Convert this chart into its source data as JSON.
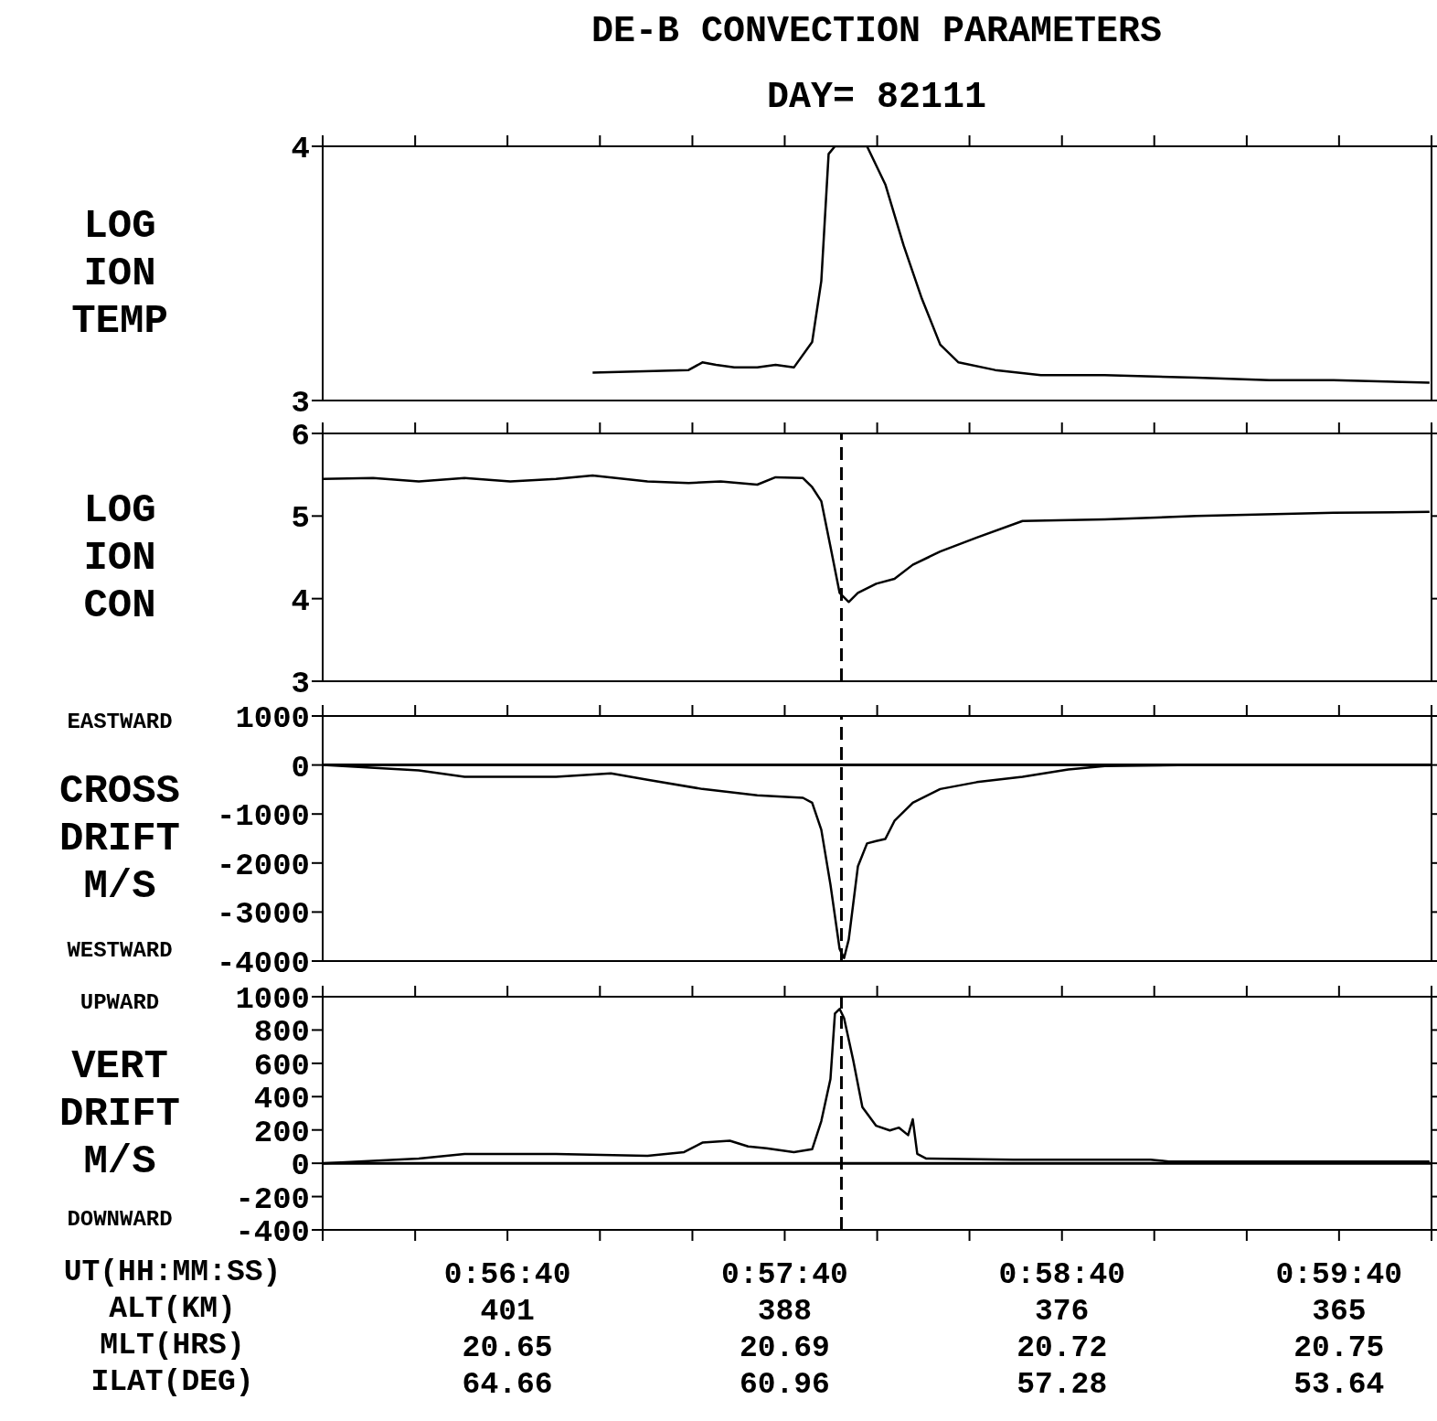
{
  "chart_data": [
    {
      "type": "line",
      "title": "DE-B CONVECTION PARAMETERS",
      "subtitle": "DAY= 82111",
      "ylabel": "LOG\nION\nTEMP",
      "tick_labels": "y",
      "xlim": [
        0.93333,
        1.0
      ],
      "xticks": [
        {
          "value": 0.93333,
          "label": null
        },
        {
          "value": 0.93889,
          "label": null
        },
        {
          "value": 0.94444,
          "label": null
        },
        {
          "value": 0.95,
          "label": null
        },
        {
          "value": 0.95556,
          "label": null
        },
        {
          "value": 0.96111,
          "label": null
        },
        {
          "value": 0.96667,
          "label": null
        },
        {
          "value": 0.97222,
          "label": null
        },
        {
          "value": 0.97778,
          "label": null
        },
        {
          "value": 0.98333,
          "label": null
        },
        {
          "value": 0.98889,
          "label": null
        },
        {
          "value": 0.99444,
          "label": null
        },
        {
          "value": 1.0,
          "label": null
        }
      ],
      "ylim": [
        3,
        4
      ],
      "yticks": [
        3,
        4
      ],
      "series": [
        {
          "color": "#000000",
          "x": [
            0.94956,
            0.95533,
            0.95616,
            0.95698,
            0.95808,
            0.95946,
            0.96056,
            0.96166,
            0.96276,
            0.96331,
            0.96375,
            0.96413,
            0.96606,
            0.96716,
            0.96826,
            0.96936,
            0.97046,
            0.97156,
            0.97376,
            0.97651,
            0.98036,
            0.98586,
            0.99026,
            0.99411,
            0.99988
          ],
          "values": [
            3.11,
            3.12,
            3.15,
            3.14,
            3.13,
            3.13,
            3.14,
            3.13,
            3.23,
            3.47,
            3.97,
            4,
            4,
            3.85,
            3.61,
            3.4,
            3.22,
            3.15,
            3.12,
            3.1,
            3.1,
            3.09,
            3.08,
            3.08,
            3.07
          ]
        }
      ]
    },
    {
      "type": "line",
      "ylabel": "LOG\nION\nCON",
      "tick_labels": "y",
      "xlim": [
        0.93333,
        1.0
      ],
      "xticks": [
        {
          "value": 0.93333,
          "label": null
        },
        {
          "value": 0.93889,
          "label": null
        },
        {
          "value": 0.94444,
          "label": null
        },
        {
          "value": 0.95,
          "label": null
        },
        {
          "value": 0.95556,
          "label": null
        },
        {
          "value": 0.96111,
          "label": null
        },
        {
          "value": 0.96667,
          "label": null
        },
        {
          "value": 0.97222,
          "label": null
        },
        {
          "value": 0.97778,
          "label": null
        },
        {
          "value": 0.98333,
          "label": null
        },
        {
          "value": 0.98889,
          "label": null
        },
        {
          "value": 0.99444,
          "label": null
        },
        {
          "value": 1.0,
          "label": null
        }
      ],
      "ylim": [
        3,
        6
      ],
      "yticks": [
        3,
        4,
        5,
        6
      ],
      "ref_lines": [
        {
          "axis": "x",
          "value": 0.96452,
          "line_style": "dashed"
        }
      ],
      "series": [
        {
          "color": "#000000",
          "x": [
            0.93333,
            0.93636,
            0.93911,
            0.94186,
            0.94461,
            0.94736,
            0.94956,
            0.95286,
            0.95533,
            0.95726,
            0.95946,
            0.96056,
            0.96221,
            0.96276,
            0.96331,
            0.96386,
            0.96441,
            0.96496,
            0.96551,
            0.96661,
            0.96771,
            0.96881,
            0.97046,
            0.97266,
            0.97541,
            0.98036,
            0.98586,
            0.99411,
            0.99988
          ],
          "values": [
            5.45,
            5.46,
            5.42,
            5.46,
            5.42,
            5.45,
            5.49,
            5.42,
            5.4,
            5.42,
            5.38,
            5.47,
            5.46,
            5.35,
            5.18,
            4.63,
            4.07,
            3.96,
            4.07,
            4.18,
            4.24,
            4.41,
            4.57,
            4.74,
            4.94,
            4.96,
            5.0,
            5.04,
            5.05
          ]
        }
      ]
    },
    {
      "type": "line",
      "ylabel": "CROSS\nDRIFT\nM/S",
      "annotations": [
        "EASTWARD",
        "WESTWARD"
      ],
      "tick_labels": "y",
      "xlim": [
        0.93333,
        1.0
      ],
      "xticks": [
        {
          "value": 0.93333,
          "label": null
        },
        {
          "value": 0.93889,
          "label": null
        },
        {
          "value": 0.94444,
          "label": null
        },
        {
          "value": 0.95,
          "label": null
        },
        {
          "value": 0.95556,
          "label": null
        },
        {
          "value": 0.96111,
          "label": null
        },
        {
          "value": 0.96667,
          "label": null
        },
        {
          "value": 0.97222,
          "label": null
        },
        {
          "value": 0.97778,
          "label": null
        },
        {
          "value": 0.98333,
          "label": null
        },
        {
          "value": 0.98889,
          "label": null
        },
        {
          "value": 0.99444,
          "label": null
        },
        {
          "value": 1.0,
          "label": null
        }
      ],
      "ylim": [
        -4000,
        1000
      ],
      "yticks": [
        -4000,
        -3000,
        -2000,
        -1000,
        0,
        1000
      ],
      "ref_lines": [
        {
          "axis": "y",
          "value": 0,
          "line_style": "solid"
        },
        {
          "axis": "x",
          "value": 0.96452,
          "line_style": "dashed"
        }
      ],
      "series": [
        {
          "color": "#000000",
          "x": [
            0.93333,
            0.93911,
            0.94186,
            0.94736,
            0.95066,
            0.95286,
            0.95616,
            0.95946,
            0.96221,
            0.96276,
            0.96331,
            0.96386,
            0.96441,
            0.96468,
            0.96496,
            0.96551,
            0.96606,
            0.96661,
            0.96716,
            0.96771,
            0.96881,
            0.97046,
            0.97266,
            0.97541,
            0.97816,
            0.98036,
            0.98586,
            0.99988
          ],
          "values": [
            0,
            -110,
            -240,
            -240,
            -170,
            -300,
            -490,
            -620,
            -670,
            -770,
            -1320,
            -2440,
            -3750,
            -3940,
            -3560,
            -2070,
            -1600,
            -1550,
            -1510,
            -1140,
            -770,
            -490,
            -350,
            -240,
            -90,
            -20,
            0,
            0
          ]
        }
      ]
    },
    {
      "type": "line",
      "ylabel": "VERT\nDRIFT\nM/S",
      "annotations": [
        "UPWARD",
        "DOWNWARD",
        "401",
        "20.65",
        "64.66",
        "388",
        "20.69",
        "60.96",
        "376",
        "20.72",
        "57.28",
        "365",
        "20.75",
        "53.64"
      ],
      "xlabel": "UT(HH:MM:SS)\nALT(KM)\nMLT(HRS)\nILAT(DEG)",
      "xlim": [
        0.93333,
        1.0
      ],
      "xticks": [
        {
          "value": 0.93333,
          "label": null
        },
        {
          "value": 0.93889,
          "label": null
        },
        {
          "value": 0.94444,
          "label": "0:56:40"
        },
        {
          "value": 0.95,
          "label": null
        },
        {
          "value": 0.95556,
          "label": null
        },
        {
          "value": 0.96111,
          "label": "0:57:40"
        },
        {
          "value": 0.96667,
          "label": null
        },
        {
          "value": 0.97222,
          "label": null
        },
        {
          "value": 0.97778,
          "label": "0:58:40"
        },
        {
          "value": 0.98333,
          "label": null
        },
        {
          "value": 0.98889,
          "label": null
        },
        {
          "value": 0.99444,
          "label": "0:59:40"
        },
        {
          "value": 1.0,
          "label": null
        }
      ],
      "ylim": [
        -400,
        1000
      ],
      "yticks": [
        -400,
        -200,
        0,
        200,
        400,
        600,
        800,
        1000
      ],
      "ref_lines": [
        {
          "axis": "y",
          "value": 0,
          "line_style": "solid"
        },
        {
          "axis": "x",
          "value": 0.96452,
          "line_style": "dashed"
        }
      ],
      "series": [
        {
          "color": "#000000",
          "x": [
            0.93333,
            0.93911,
            0.94186,
            0.94736,
            0.95286,
            0.95506,
            0.95616,
            0.95781,
            0.95891,
            0.96001,
            0.96166,
            0.96276,
            0.96331,
            0.96386,
            0.96413,
            0.96441,
            0.96468,
            0.96523,
            0.96578,
            0.96661,
            0.96743,
            0.96798,
            0.96853,
            0.96881,
            0.96908,
            0.96963,
            0.97486,
            0.98311,
            0.98421,
            0.99988
          ],
          "values": [
            0,
            28,
            56,
            56,
            45,
            67,
            124,
            135,
            101,
            90,
            67,
            84,
            253,
            506,
            899,
            927,
            871,
            618,
            337,
            225,
            197,
            214,
            169,
            264,
            56,
            28,
            22,
            22,
            11,
            11
          ]
        }
      ]
    }
  ]
}
